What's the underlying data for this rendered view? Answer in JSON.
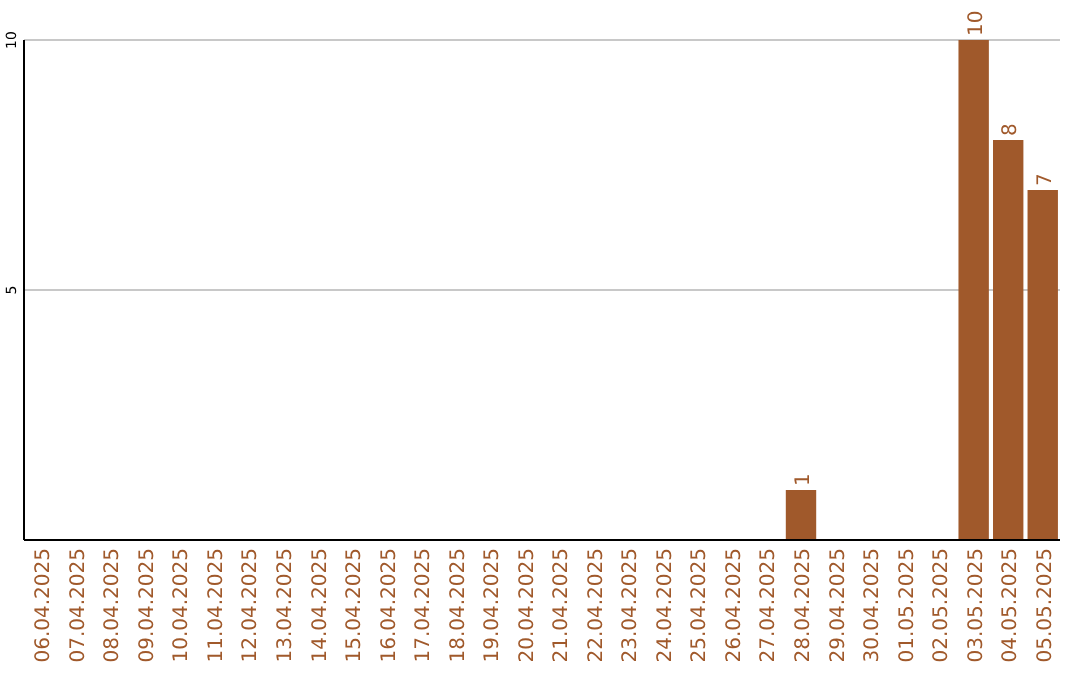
{
  "chart_data": {
    "type": "bar",
    "categories": [
      "06.04.2025",
      "07.04.2025",
      "08.04.2025",
      "09.04.2025",
      "10.04.2025",
      "11.04.2025",
      "12.04.2025",
      "13.04.2025",
      "14.04.2025",
      "15.04.2025",
      "16.04.2025",
      "17.04.2025",
      "18.04.2025",
      "19.04.2025",
      "20.04.2025",
      "21.04.2025",
      "22.04.2025",
      "23.04.2025",
      "24.04.2025",
      "25.04.2025",
      "26.04.2025",
      "27.04.2025",
      "28.04.2025",
      "29.04.2025",
      "30.04.2025",
      "01.05.2025",
      "02.05.2025",
      "03.05.2025",
      "04.05.2025",
      "05.05.2025"
    ],
    "values": [
      0,
      0,
      0,
      0,
      0,
      0,
      0,
      0,
      0,
      0,
      0,
      0,
      0,
      0,
      0,
      0,
      0,
      0,
      0,
      0,
      0,
      0,
      1,
      0,
      0,
      0,
      0,
      10,
      8,
      7
    ],
    "value_labels": [
      null,
      null,
      null,
      null,
      null,
      null,
      null,
      null,
      null,
      null,
      null,
      null,
      null,
      null,
      null,
      null,
      null,
      null,
      null,
      null,
      null,
      null,
      "1",
      null,
      null,
      null,
      null,
      "10",
      "8",
      "7"
    ],
    "color": "#a0592b",
    "ylim": [
      0,
      10
    ],
    "yticks": [
      5,
      10
    ],
    "grid": "y"
  }
}
